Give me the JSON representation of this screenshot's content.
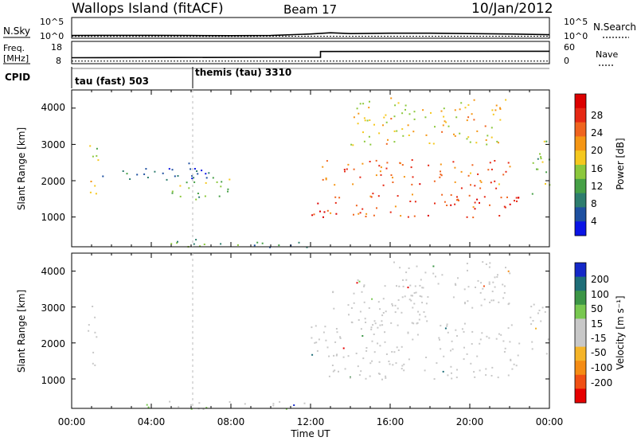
{
  "header": {
    "station": "Wallops Island (fitACF)",
    "beam": "Beam 17",
    "date": "10/Jan/2012"
  },
  "noise_panel": {
    "left_label": "N.Sky",
    "right_label": "N.Search",
    "left_ticks": [
      "10^5",
      "10^0"
    ],
    "right_ticks": [
      "10^5",
      "10^0"
    ]
  },
  "freq_panel": {
    "left_label_line1": "Freq.",
    "left_label_line2": "[MHz]",
    "right_label": "Nave",
    "left_ticks": [
      "18",
      "8"
    ],
    "right_ticks": [
      "60",
      "0"
    ]
  },
  "cpid_panel": {
    "label": "CPID",
    "segments": [
      {
        "name": "tau (fast) 503"
      },
      {
        "name": "themis (tau) 3310"
      }
    ]
  },
  "x_axis": {
    "ticks": [
      "00:00",
      "04:00",
      "08:00",
      "12:00",
      "16:00",
      "20:00",
      "00:00"
    ],
    "label": "Time UT"
  },
  "power_panel": {
    "ylabel": "Slant Range [km]",
    "yticks": [
      "4000",
      "3000",
      "2000",
      "1000"
    ],
    "colorbar_label": "Power [dB]",
    "colorbar_ticks": [
      "28",
      "24",
      "20",
      "16",
      "12",
      "8",
      "4"
    ],
    "colors": [
      "#0a14e6",
      "#1e50a0",
      "#2d7d6e",
      "#46a046",
      "#8cc83c",
      "#f5c81e",
      "#f59614",
      "#f0641e",
      "#e62814",
      "#dc0000"
    ]
  },
  "velocity_panel": {
    "ylabel": "Slant Range [km]",
    "yticks": [
      "4000",
      "3000",
      "2000",
      "1000"
    ],
    "colorbar_label": "Velocity [m s⁻¹]",
    "colorbar_ticks": [
      "200",
      "100",
      "50",
      "15",
      "-15",
      "-50",
      "-100",
      "-200"
    ],
    "colors": [
      "#1428c8",
      "#1e6e78",
      "#3c9646",
      "#78c850",
      "#c8c8c8",
      "#c8c8c8",
      "#f5b428",
      "#f58c14",
      "#f05014",
      "#e60000"
    ]
  },
  "chart_data": [
    {
      "type": "line",
      "panel": "noise",
      "series": [
        {
          "name": "N.Sky",
          "x_hours": [
            0,
            2,
            4,
            6,
            8,
            10,
            12,
            13,
            14,
            16,
            18,
            20,
            22,
            24
          ],
          "values_log10": [
            0.5,
            0.55,
            0.55,
            0.5,
            0.45,
            0.5,
            0.9,
            1.2,
            1.0,
            1.1,
            1.1,
            1.0,
            0.9,
            0.7
          ]
        },
        {
          "name": "N.Search",
          "x_hours": [
            0,
            6,
            12,
            18,
            24
          ],
          "values_log10": [
            0.25,
            0.25,
            0.3,
            0.3,
            0.3
          ]
        }
      ],
      "ylim_log10": [
        0,
        5
      ]
    },
    {
      "type": "line",
      "panel": "frequency",
      "series": [
        {
          "name": "Freq. [MHz]",
          "x_hours": [
            0,
            5,
            10,
            12.5,
            12.5,
            24
          ],
          "values": [
            10.5,
            10.6,
            10.7,
            10.7,
            13.5,
            13.6
          ]
        },
        {
          "name": "Nave",
          "x_hours": [
            0,
            24
          ],
          "values": [
            5,
            5
          ]
        }
      ],
      "ylim_left": [
        8,
        18
      ],
      "ylim_right": [
        0,
        60
      ]
    },
    {
      "type": "heatmap",
      "panel": "power",
      "xlim_hours": [
        0,
        24
      ],
      "ylim_km": [
        180,
        4500
      ],
      "zlim_db": [
        0,
        32
      ],
      "regions": [
        {
          "t": [
            0.8,
            1.3
          ],
          "r": [
            1300,
            3200
          ],
          "level": 16
        },
        {
          "t": [
            1.5,
            7.0
          ],
          "r": [
            2000,
            2500
          ],
          "level": 6
        },
        {
          "t": [
            5.0,
            8.5
          ],
          "r": [
            1500,
            2200
          ],
          "level": 12
        },
        {
          "t": [
            3.0,
            12.0
          ],
          "r": [
            180,
            400
          ],
          "level": 10
        },
        {
          "t": [
            12.0,
            22.5
          ],
          "r": [
            1000,
            1700
          ],
          "level": 26
        },
        {
          "t": [
            12.5,
            22.0
          ],
          "r": [
            1800,
            2600
          ],
          "level": 24
        },
        {
          "t": [
            14.0,
            22.0
          ],
          "r": [
            3000,
            4300
          ],
          "level": 18
        },
        {
          "t": [
            23.0,
            24.0
          ],
          "r": [
            1600,
            3200
          ],
          "level": 14
        }
      ]
    },
    {
      "type": "heatmap",
      "panel": "velocity",
      "xlim_hours": [
        0,
        24
      ],
      "ylim_km": [
        180,
        4500
      ],
      "zlim_ms": [
        -250,
        250
      ],
      "regions": [
        {
          "t": [
            0.8,
            1.3
          ],
          "r": [
            1300,
            3200
          ],
          "velocity": 0
        },
        {
          "t": [
            3.0,
            12.0
          ],
          "r": [
            180,
            400
          ],
          "velocity": 30
        },
        {
          "t": [
            12.0,
            22.5
          ],
          "r": [
            1000,
            2600
          ],
          "velocity": 0
        },
        {
          "t": [
            13.0,
            18.0
          ],
          "r": [
            2500,
            3800
          ],
          "velocity": 20
        },
        {
          "t": [
            16.0,
            22.0
          ],
          "r": [
            3000,
            4300
          ],
          "velocity": 0
        },
        {
          "t": [
            23.0,
            24.0
          ],
          "r": [
            1600,
            3200
          ],
          "velocity": 0
        }
      ]
    }
  ]
}
